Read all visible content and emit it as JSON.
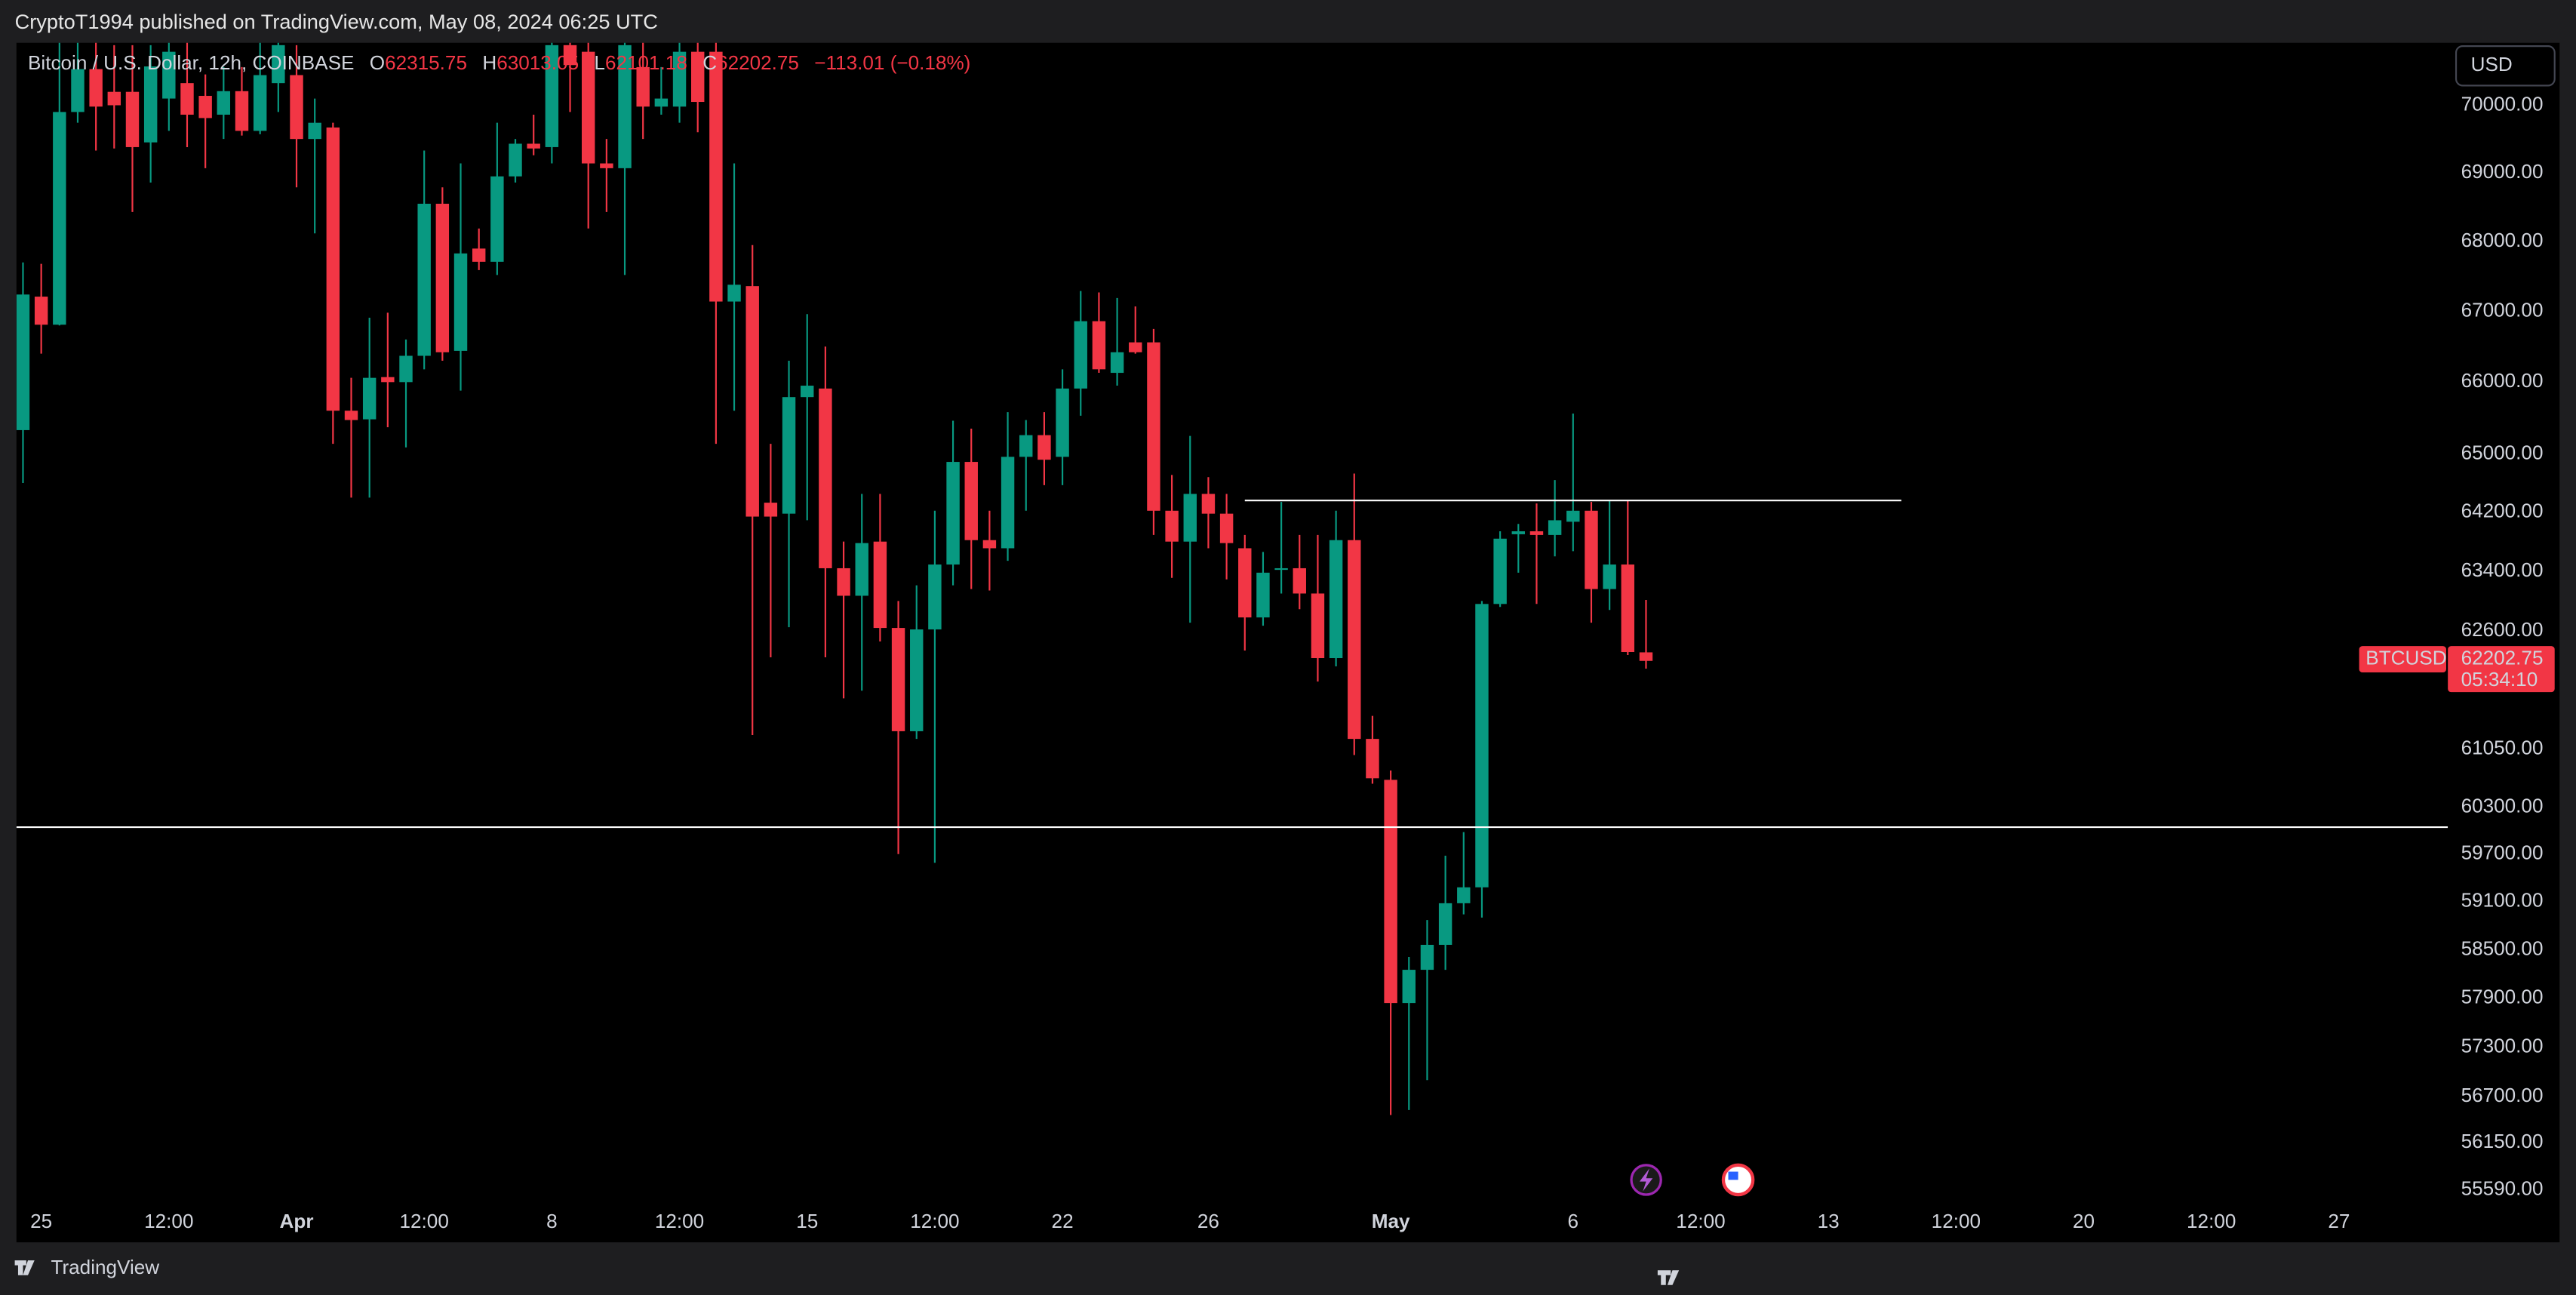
{
  "header": "CryptoT1994 published on TradingView.com, May 08, 2024 06:25 UTC",
  "footer": "TradingView",
  "currency_button": "USD",
  "chart_data": {
    "type": "candlestick",
    "legend": {
      "symbol": "Bitcoin / U.S. Dollar, 12h, COINBASE",
      "labels": [
        "O",
        "H",
        "L",
        "C"
      ],
      "change": "−113.01 (−0.18%)"
    },
    "up_color": "#089981",
    "down_color": "#f23645",
    "log_scale": true,
    "grid": false,
    "xlim": [
      -0.36,
      132.97
    ],
    "xticks": [
      {
        "value": 1,
        "label": "25"
      },
      {
        "value": 8,
        "label": "12:00"
      },
      {
        "value": 15,
        "label": "Apr"
      },
      {
        "value": 22,
        "label": "12:00"
      },
      {
        "value": 29,
        "label": "8"
      },
      {
        "value": 36,
        "label": "12:00"
      },
      {
        "value": 43,
        "label": "15"
      },
      {
        "value": 50,
        "label": "12:00"
      },
      {
        "value": 57,
        "label": "22"
      },
      {
        "value": 65,
        "label": "26"
      },
      {
        "value": 75,
        "label": "May"
      },
      {
        "value": 85,
        "label": "6"
      },
      {
        "value": 92,
        "label": "12:00"
      },
      {
        "value": 99,
        "label": "13"
      },
      {
        "value": 106,
        "label": "12:00"
      },
      {
        "value": 113,
        "label": "20"
      },
      {
        "value": 120,
        "label": "12:00"
      },
      {
        "value": 127,
        "label": "27"
      }
    ],
    "ylim": [
      54972,
      70935
    ],
    "yticks": [
      {
        "value": 70000,
        "label": "70000.00"
      },
      {
        "value": 69000,
        "label": "69000.00"
      },
      {
        "value": 68000,
        "label": "68000.00"
      },
      {
        "value": 67000,
        "label": "67000.00"
      },
      {
        "value": 66000,
        "label": "66000.00"
      },
      {
        "value": 65000,
        "label": "65000.00"
      },
      {
        "value": 64200,
        "label": "64200.00"
      },
      {
        "value": 63400,
        "label": "63400.00"
      },
      {
        "value": 62600,
        "label": "62600.00"
      },
      {
        "value": 61050,
        "label": "61050.00"
      },
      {
        "value": 60300,
        "label": "60300.00"
      },
      {
        "value": 59700,
        "label": "59700.00"
      },
      {
        "value": 59100,
        "label": "59100.00"
      },
      {
        "value": 58500,
        "label": "58500.00"
      },
      {
        "value": 57900,
        "label": "57900.00"
      },
      {
        "value": 57300,
        "label": "57300.00"
      },
      {
        "value": 56700,
        "label": "56700.00"
      },
      {
        "value": 56150,
        "label": "56150.00"
      },
      {
        "value": 55590,
        "label": "55590.00"
      }
    ],
    "open": [
      65330,
      67210,
      66810,
      69900,
      70540,
      70200,
      70200,
      69450,
      70100,
      70330,
      70140,
      69860,
      70210,
      69620,
      70330,
      70450,
      69500,
      69670,
      65600,
      65480,
      66070,
      66000,
      66370,
      68550,
      66440,
      67900,
      67710,
      68950,
      69430,
      69380,
      70900,
      70800,
      69140,
      69070,
      70570,
      69980,
      69980,
      70800,
      70800,
      67140,
      67360,
      64330,
      64180,
      65790,
      65910,
      63440,
      63070,
      63800,
      62640,
      61280,
      62620,
      63490,
      64890,
      63820,
      63710,
      64960,
      65260,
      64960,
      65910,
      66860,
      66130,
      66560,
      66560,
      64220,
      63800,
      64450,
      64180,
      63710,
      62780,
      63420,
      63440,
      63100,
      62240,
      63820,
      61180,
      60650,
      57840,
      58250,
      58560,
      59080,
      59280,
      62960,
      63900,
      63940,
      63890,
      64070,
      64220,
      63160,
      63490,
      62315.75
    ],
    "high": [
      67700,
      67680,
      70940,
      70940,
      70940,
      70900,
      70900,
      70900,
      70940,
      70940,
      70460,
      70570,
      70570,
      70940,
      70940,
      70900,
      70100,
      69740,
      66060,
      66910,
      66980,
      66600,
      69330,
      68790,
      69140,
      68190,
      69740,
      69500,
      69860,
      70940,
      70940,
      70940,
      69500,
      70940,
      70940,
      70570,
      70940,
      70940,
      70940,
      69140,
      67950,
      65140,
      66300,
      66960,
      66500,
      63800,
      64450,
      64450,
      63000,
      63210,
      64220,
      65460,
      65350,
      64220,
      65580,
      65470,
      65580,
      66180,
      67290,
      67270,
      67190,
      67070,
      66750,
      64710,
      65250,
      64680,
      64450,
      63890,
      63660,
      64340,
      63890,
      63890,
      64220,
      64730,
      61480,
      60770,
      58410,
      58870,
      59680,
      59980,
      63000,
      63940,
      64040,
      64320,
      64640,
      65560,
      64340,
      64360,
      64360,
      63013.05
    ],
    "low": [
      64600,
      66400,
      66800,
      69740,
      69330,
      69360,
      68430,
      68860,
      69620,
      69380,
      69070,
      69500,
      69550,
      69570,
      69900,
      68790,
      68120,
      65140,
      64400,
      64400,
      65370,
      65090,
      66180,
      66300,
      65880,
      67590,
      67520,
      68860,
      69260,
      69140,
      69900,
      68190,
      68430,
      67520,
      69500,
      69860,
      69740,
      69600,
      65140,
      65600,
      61230,
      62250,
      62650,
      64090,
      62250,
      61710,
      61810,
      62460,
      59700,
      61180,
      59590,
      63210,
      63160,
      63140,
      63540,
      64220,
      64570,
      64570,
      65530,
      66130,
      65950,
      66400,
      63890,
      63310,
      62710,
      63710,
      63290,
      62340,
      62670,
      63100,
      62890,
      61930,
      62130,
      60970,
      60600,
      56480,
      56540,
      56900,
      58250,
      58940,
      58900,
      62920,
      63380,
      62960,
      63600,
      63670,
      62710,
      62880,
      62280,
      62101.18
    ],
    "close": [
      67240,
      66810,
      69900,
      70540,
      69980,
      70000,
      69380,
      70580,
      70800,
      69860,
      69810,
      70210,
      69620,
      70450,
      70900,
      69500,
      69740,
      65600,
      65470,
      66060,
      66000,
      66370,
      68550,
      66420,
      67830,
      67710,
      68950,
      69430,
      69360,
      70900,
      70600,
      69140,
      69070,
      70900,
      69980,
      70100,
      70800,
      70050,
      67140,
      67380,
      64140,
      64140,
      65790,
      65950,
      63440,
      63070,
      63780,
      62640,
      61280,
      62620,
      63490,
      64890,
      63820,
      63710,
      64960,
      65260,
      64920,
      65910,
      66860,
      66180,
      66420,
      66420,
      64220,
      63800,
      64450,
      64180,
      63780,
      62780,
      63380,
      63440,
      63100,
      62240,
      63820,
      61180,
      60670,
      57840,
      58250,
      58560,
      59080,
      59280,
      62960,
      63840,
      63940,
      63890,
      64090,
      64220,
      63160,
      63490,
      62320,
      62202.75
    ],
    "hlines": [
      {
        "value": 60043,
        "color": "#ffffff"
      },
      {
        "value": 64360,
        "x0": 67,
        "x1": 103,
        "color": "#ffffff"
      }
    ],
    "price_label": {
      "symbol": "BTCUSD",
      "countdown": "05:34:10"
    }
  }
}
